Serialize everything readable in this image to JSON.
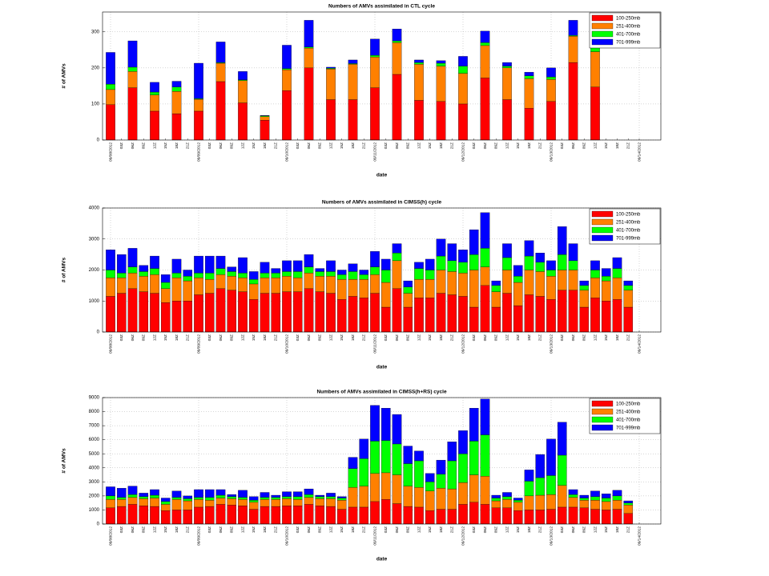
{
  "chart_data": [
    {
      "type": "bar",
      "stacked": true,
      "title": "Numbers of AMVs assimilated in CTL cycle",
      "xlabel": "date",
      "ylabel": "# of AMVs",
      "categories": [
        "09/08/2012",
        "03Z",
        "06Z",
        "09Z",
        "12Z",
        "15Z",
        "18Z",
        "21Z",
        "09/09/2012",
        "03Z",
        "06Z",
        "09Z",
        "12Z",
        "15Z",
        "18Z",
        "21Z",
        "09/10/2012",
        "03Z",
        "06Z",
        "09Z",
        "12Z",
        "15Z",
        "18Z",
        "21Z",
        "09/11/2012",
        "03Z",
        "06Z",
        "09Z",
        "12Z",
        "15Z",
        "18Z",
        "21Z",
        "09/12/2012",
        "03Z",
        "06Z",
        "09Z",
        "12Z",
        "15Z",
        "18Z",
        "21Z",
        "09/13/2012",
        "03Z",
        "06Z",
        "09Z",
        "12Z",
        "15Z",
        "18Z",
        "21Z",
        "09/14/2012"
      ],
      "series": [
        {
          "name": "100-250mb",
          "color": "#ff0000",
          "values": [
            98,
            null,
            145,
            null,
            80,
            null,
            73,
            null,
            80,
            null,
            162,
            null,
            103,
            null,
            55,
            null,
            137,
            null,
            200,
            null,
            112,
            null,
            112,
            null,
            145,
            null,
            182,
            null,
            110,
            null,
            107,
            null,
            100,
            null,
            172,
            null,
            112,
            null,
            88,
            null,
            107,
            null,
            215,
            null,
            147,
            null,
            null,
            null,
            null
          ]
        },
        {
          "name": "251-400mb",
          "color": "#ff8000",
          "values": [
            42,
            null,
            45,
            null,
            45,
            null,
            62,
            null,
            33,
            null,
            51,
            null,
            62,
            null,
            10,
            null,
            58,
            null,
            55,
            null,
            85,
            null,
            98,
            null,
            85,
            null,
            88,
            null,
            100,
            null,
            98,
            null,
            85,
            null,
            90,
            null,
            88,
            null,
            82,
            null,
            61,
            null,
            73,
            null,
            98,
            null,
            null,
            null,
            null
          ]
        },
        {
          "name": "401-700mb",
          "color": "#00ff00",
          "values": [
            15,
            null,
            12,
            null,
            8,
            null,
            12,
            null,
            2,
            null,
            2,
            null,
            2,
            null,
            2,
            null,
            3,
            null,
            3,
            null,
            2,
            null,
            2,
            null,
            5,
            null,
            5,
            null,
            5,
            null,
            8,
            null,
            20,
            null,
            8,
            null,
            5,
            null,
            8,
            null,
            7,
            null,
            2,
            null,
            13,
            null,
            null,
            null,
            null
          ]
        },
        {
          "name": "701-999mb",
          "color": "#0000ff",
          "values": [
            88,
            null,
            73,
            null,
            27,
            null,
            16,
            null,
            98,
            null,
            57,
            null,
            23,
            null,
            1,
            null,
            65,
            null,
            74,
            null,
            3,
            null,
            10,
            null,
            45,
            null,
            33,
            null,
            7,
            null,
            7,
            null,
            27,
            null,
            32,
            null,
            10,
            null,
            10,
            null,
            25,
            null,
            42,
            null,
            12,
            null,
            null,
            null,
            null
          ]
        }
      ],
      "ylim": [
        0,
        355
      ],
      "yticks": [
        0,
        100,
        200,
        300
      ],
      "grid": true,
      "legend": "upper right"
    },
    {
      "type": "bar",
      "stacked": true,
      "title": "Numbers of AMVs assimilated in CIMSS(h) cycle",
      "xlabel": "date",
      "ylabel": "# of AMVs",
      "categories": [
        "09/08/2012",
        "03Z",
        "06Z",
        "09Z",
        "12Z",
        "15Z",
        "18Z",
        "21Z",
        "09/09/2012",
        "03Z",
        "06Z",
        "09Z",
        "12Z",
        "15Z",
        "18Z",
        "21Z",
        "09/10/2012",
        "03Z",
        "06Z",
        "09Z",
        "12Z",
        "15Z",
        "18Z",
        "21Z",
        "09/11/2012",
        "03Z",
        "06Z",
        "09Z",
        "12Z",
        "15Z",
        "18Z",
        "21Z",
        "09/12/2012",
        "03Z",
        "06Z",
        "09Z",
        "12Z",
        "15Z",
        "18Z",
        "21Z",
        "09/13/2012",
        "03Z",
        "06Z",
        "09Z",
        "12Z",
        "15Z",
        "18Z",
        "21Z",
        "09/14/2012"
      ],
      "series": [
        {
          "name": "100-250mb",
          "color": "#ff0000",
          "values": [
            1150,
            1250,
            1400,
            1300,
            1250,
            950,
            1000,
            1000,
            1200,
            1250,
            1400,
            1350,
            1300,
            1050,
            1250,
            1250,
            1300,
            1300,
            1400,
            1300,
            1250,
            1050,
            1150,
            1100,
            1250,
            800,
            1400,
            800,
            1100,
            1100,
            1250,
            1200,
            1150,
            800,
            1500,
            800,
            1250,
            850,
            1200,
            1150,
            1050,
            1350,
            1350,
            800,
            1100,
            1000,
            1050,
            800,
            null
          ]
        },
        {
          "name": "251-400mb",
          "color": "#ff8000",
          "values": [
            600,
            500,
            500,
            500,
            600,
            450,
            750,
            650,
            550,
            450,
            450,
            450,
            450,
            500,
            500,
            500,
            500,
            450,
            500,
            500,
            550,
            650,
            550,
            600,
            600,
            800,
            900,
            450,
            600,
            600,
            750,
            750,
            750,
            1200,
            600,
            500,
            750,
            750,
            800,
            800,
            750,
            650,
            650,
            550,
            650,
            650,
            700,
            550,
            null
          ]
        },
        {
          "name": "401-700mb",
          "color": "#00ff00",
          "values": [
            250,
            150,
            200,
            150,
            200,
            200,
            150,
            150,
            150,
            200,
            200,
            150,
            150,
            150,
            150,
            150,
            150,
            200,
            200,
            150,
            150,
            150,
            250,
            150,
            250,
            400,
            250,
            200,
            350,
            300,
            450,
            350,
            350,
            500,
            600,
            200,
            400,
            200,
            450,
            300,
            200,
            500,
            300,
            150,
            250,
            150,
            300,
            150,
            null
          ]
        },
        {
          "name": "701-999mb",
          "color": "#0000ff",
          "values": [
            650,
            600,
            600,
            200,
            400,
            250,
            450,
            200,
            550,
            550,
            400,
            150,
            500,
            250,
            350,
            150,
            350,
            350,
            400,
            100,
            350,
            150,
            250,
            150,
            500,
            350,
            300,
            200,
            200,
            350,
            550,
            550,
            400,
            800,
            1150,
            150,
            450,
            350,
            500,
            300,
            300,
            900,
            550,
            150,
            300,
            250,
            350,
            150,
            null
          ]
        }
      ],
      "ylim": [
        0,
        4000
      ],
      "yticks": [
        0,
        1000,
        2000,
        3000,
        4000
      ],
      "grid": true,
      "legend": "upper right"
    },
    {
      "type": "bar",
      "stacked": true,
      "title": "Numbers of AMVs assimilated in CIMSS(h+RS) cycle",
      "xlabel": "date",
      "ylabel": "# of AMVs",
      "categories": [
        "09/08/2012",
        "03Z",
        "06Z",
        "09Z",
        "12Z",
        "15Z",
        "18Z",
        "21Z",
        "09/09/2012",
        "03Z",
        "06Z",
        "09Z",
        "12Z",
        "15Z",
        "18Z",
        "21Z",
        "09/10/2012",
        "03Z",
        "06Z",
        "09Z",
        "12Z",
        "15Z",
        "18Z",
        "21Z",
        "09/11/2012",
        "03Z",
        "06Z",
        "09Z",
        "12Z",
        "15Z",
        "18Z",
        "21Z",
        "09/12/2012",
        "03Z",
        "06Z",
        "09Z",
        "12Z",
        "15Z",
        "18Z",
        "21Z",
        "09/13/2012",
        "03Z",
        "06Z",
        "09Z",
        "12Z",
        "15Z",
        "18Z",
        "21Z",
        "09/14/2012"
      ],
      "series": [
        {
          "name": "100-250mb",
          "color": "#ff0000",
          "values": [
            1150,
            1250,
            1400,
            1300,
            1250,
            950,
            1000,
            1000,
            1200,
            1250,
            1400,
            1350,
            1300,
            1050,
            1250,
            1250,
            1300,
            1300,
            1400,
            1300,
            1250,
            1050,
            1200,
            1200,
            1600,
            1750,
            1450,
            1250,
            1200,
            950,
            1050,
            1050,
            1400,
            1550,
            1400,
            1150,
            1150,
            950,
            1000,
            1000,
            1050,
            1200,
            1200,
            1150,
            1050,
            1000,
            1050,
            750,
            null
          ]
        },
        {
          "name": "251-400mb",
          "color": "#ff8000",
          "values": [
            600,
            500,
            500,
            500,
            600,
            450,
            750,
            650,
            550,
            450,
            450,
            450,
            450,
            500,
            500,
            500,
            500,
            450,
            500,
            500,
            550,
            650,
            1400,
            1500,
            2000,
            1900,
            2050,
            1450,
            1400,
            1400,
            1500,
            1450,
            1550,
            1950,
            2000,
            500,
            600,
            600,
            1000,
            1050,
            1050,
            1550,
            700,
            550,
            650,
            600,
            650,
            600,
            null
          ]
        },
        {
          "name": "401-700mb",
          "color": "#00ff00",
          "values": [
            250,
            150,
            200,
            150,
            200,
            200,
            150,
            150,
            150,
            200,
            200,
            150,
            150,
            150,
            150,
            150,
            150,
            200,
            200,
            150,
            150,
            150,
            1350,
            1950,
            2300,
            2300,
            2200,
            1600,
            1900,
            650,
            1000,
            2000,
            2050,
            2400,
            2950,
            200,
            200,
            150,
            1050,
            1250,
            1350,
            2150,
            200,
            150,
            250,
            250,
            300,
            150,
            null
          ]
        },
        {
          "name": "701-999mb",
          "color": "#0000ff",
          "values": [
            650,
            650,
            600,
            250,
            400,
            250,
            450,
            200,
            550,
            550,
            400,
            150,
            500,
            250,
            350,
            150,
            350,
            350,
            400,
            100,
            250,
            100,
            800,
            1400,
            2550,
            2300,
            2100,
            1250,
            700,
            600,
            1000,
            1350,
            1650,
            2350,
            2550,
            200,
            300,
            150,
            800,
            1650,
            2600,
            2350,
            350,
            200,
            400,
            300,
            400,
            150,
            null
          ]
        }
      ],
      "ylim": [
        0,
        9000
      ],
      "yticks": [
        0,
        1000,
        2000,
        3000,
        4000,
        5000,
        6000,
        7000,
        8000,
        9000
      ],
      "grid": true,
      "legend": "upper right"
    }
  ]
}
